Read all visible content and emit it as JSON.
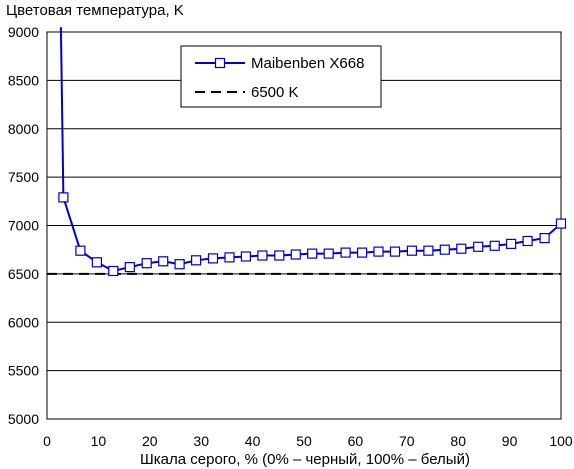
{
  "chart_data": {
    "type": "line",
    "ylabel": "Цветовая температура, K",
    "xlabel": "Шкала серого, % (0% – черный, 100% – белый)",
    "xlim": [
      0,
      100
    ],
    "ylim": [
      5000,
      9000
    ],
    "x_ticks": [
      0,
      10,
      20,
      30,
      40,
      50,
      60,
      70,
      80,
      90,
      100
    ],
    "y_ticks": [
      5000,
      5500,
      6000,
      6500,
      7000,
      7500,
      8000,
      8500,
      9000
    ],
    "grid": "horizontal",
    "legend_position": "top-center",
    "series": [
      {
        "name": "Maibenben X668",
        "color": "#0000cc",
        "marker": "square",
        "clip_start": [
          2.7,
          9050
        ],
        "x": [
          3.2,
          6.5,
          9.7,
          12.9,
          16.1,
          19.4,
          22.6,
          25.8,
          29.0,
          32.3,
          35.5,
          38.7,
          41.9,
          45.2,
          48.4,
          51.6,
          54.8,
          58.1,
          61.3,
          64.5,
          67.7,
          71.0,
          74.2,
          77.4,
          80.6,
          83.9,
          87.1,
          90.3,
          93.5,
          96.8,
          100.0
        ],
        "y": [
          7290,
          6740,
          6620,
          6530,
          6570,
          6610,
          6630,
          6600,
          6640,
          6660,
          6670,
          6680,
          6690,
          6690,
          6700,
          6710,
          6710,
          6720,
          6720,
          6730,
          6730,
          6740,
          6740,
          6750,
          6760,
          6780,
          6790,
          6810,
          6840,
          6870,
          7020
        ]
      },
      {
        "name": "6500 K",
        "color": "#000000",
        "dashed": true,
        "y_const": 6500
      }
    ]
  }
}
